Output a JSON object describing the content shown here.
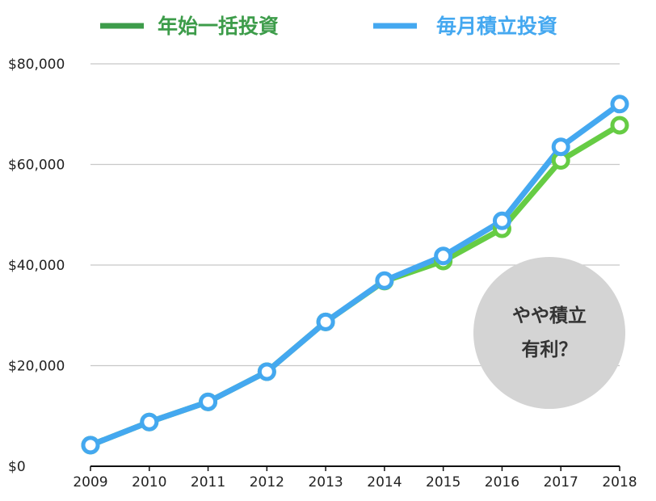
{
  "chart_data": {
    "type": "line",
    "title": "",
    "xlabel": "",
    "ylabel": "",
    "x": [
      "2009",
      "2010",
      "2011",
      "2012",
      "2013",
      "2014",
      "2015",
      "2016",
      "2017",
      "2018"
    ],
    "ylim": [
      0,
      80000
    ],
    "y_ticks": [
      0,
      20000,
      40000,
      60000,
      80000
    ],
    "y_tick_labels": [
      "$0",
      "$20,000",
      "$40,000",
      "$60,000",
      "$80,000"
    ],
    "grid": true,
    "legend_position": "top",
    "series": [
      {
        "name": "年始一括投資",
        "color": "#66cc44",
        "legend_color": "#3d9c4a",
        "values": [
          4200,
          8800,
          12800,
          18800,
          28700,
          36800,
          40800,
          47200,
          60800,
          67800
        ]
      },
      {
        "name": "毎月積立投資",
        "color": "#44a8f0",
        "legend_color": "#44a8f0",
        "values": [
          4200,
          8800,
          12800,
          18800,
          28700,
          36900,
          41800,
          48800,
          63500,
          72000
        ]
      }
    ],
    "annotations": [
      {
        "lines": [
          "やや積立",
          "有利？"
        ],
        "background": "#d4d4d4"
      }
    ]
  }
}
